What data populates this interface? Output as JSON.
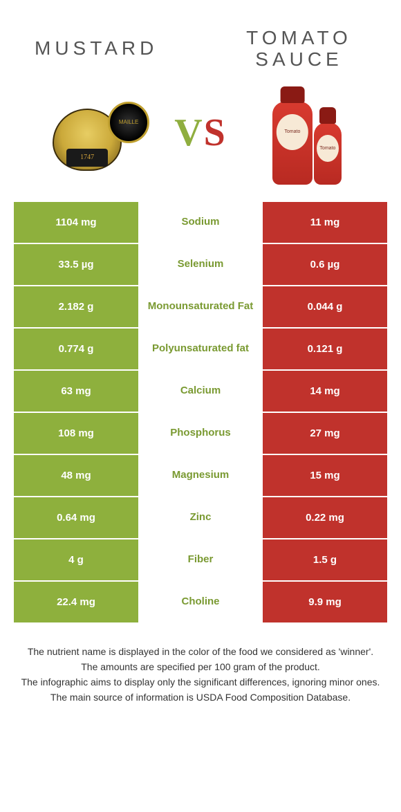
{
  "header": {
    "left_title": "MUSTARD",
    "right_title": "TOMATO SAUCE",
    "vs": "VS",
    "jar_year": "1747",
    "bottle_label": "Tomato"
  },
  "colors": {
    "left_cell_bg": "#8eb03d",
    "right_cell_bg": "#c0322c",
    "mid_text_left_win": "#7a9a32",
    "mid_text_right_win": "#b02e28",
    "row_gap_color": "#ffffff",
    "title_color": "#555555",
    "text_color": "#333333"
  },
  "rows": [
    {
      "left": "1104 mg",
      "label": "Sodium",
      "right": "11 mg",
      "winner": "left"
    },
    {
      "left": "33.5 µg",
      "label": "Selenium",
      "right": "0.6 µg",
      "winner": "left"
    },
    {
      "left": "2.182 g",
      "label": "Monounsaturated Fat",
      "right": "0.044 g",
      "winner": "left"
    },
    {
      "left": "0.774 g",
      "label": "Polyunsaturated fat",
      "right": "0.121 g",
      "winner": "left"
    },
    {
      "left": "63 mg",
      "label": "Calcium",
      "right": "14 mg",
      "winner": "left"
    },
    {
      "left": "108 mg",
      "label": "Phosphorus",
      "right": "27 mg",
      "winner": "left"
    },
    {
      "left": "48 mg",
      "label": "Magnesium",
      "right": "15 mg",
      "winner": "left"
    },
    {
      "left": "0.64 mg",
      "label": "Zinc",
      "right": "0.22 mg",
      "winner": "left"
    },
    {
      "left": "4 g",
      "label": "Fiber",
      "right": "1.5 g",
      "winner": "left"
    },
    {
      "left": "22.4 mg",
      "label": "Choline",
      "right": "9.9 mg",
      "winner": "left"
    }
  ],
  "footer": [
    "The nutrient name is displayed in the color of the food we considered as 'winner'.",
    "The amounts are specified per 100 gram of the product.",
    "The infographic aims to display only the significant differences, ignoring minor ones.",
    "The main source of information is USDA Food Composition Database."
  ]
}
